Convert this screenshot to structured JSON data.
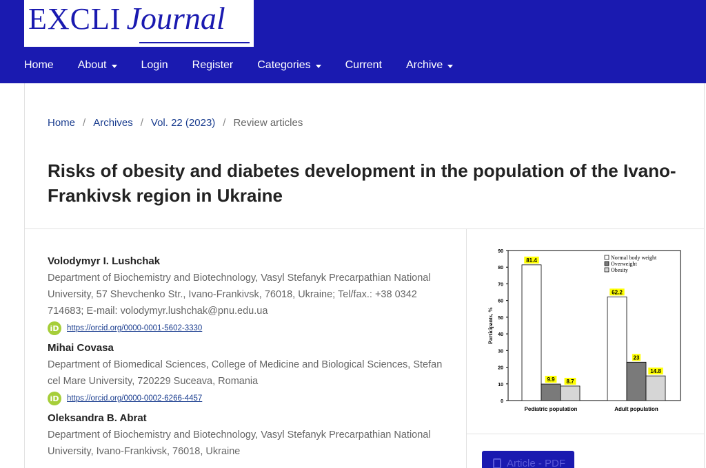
{
  "site": {
    "logo_primary": "EXCLI",
    "logo_secondary": "Journal",
    "colors": {
      "brand": "#1a1ab0",
      "link": "#1a3d8f",
      "orcid": "#a6ce39"
    }
  },
  "nav": [
    {
      "label": "Home",
      "has_menu": false
    },
    {
      "label": "About",
      "has_menu": true
    },
    {
      "label": "Login",
      "has_menu": false
    },
    {
      "label": "Register",
      "has_menu": false
    },
    {
      "label": "Categories",
      "has_menu": true
    },
    {
      "label": "Current",
      "has_menu": false
    },
    {
      "label": "Archive",
      "has_menu": true
    }
  ],
  "breadcrumb": {
    "home": "Home",
    "archives": "Archives",
    "issue": "Vol. 22 (2023)",
    "section": "Review articles",
    "separator": "/"
  },
  "article": {
    "title": "Risks of obesity and diabetes development in the population of the Ivano-Frankivsk region in Ukraine"
  },
  "authors": [
    {
      "name": "Volodymyr I. Lushchak",
      "affiliation": "Department of Biochemistry and Biotechnology, Vasyl Stefanyk Precarpathian National University, 57 Shevchenko Str., Ivano-Frankivsk, 76018, Ukraine; Tel/fax.: +38 0342 714683; E-mail: volodymyr.lushchak@pnu.edu.ua",
      "orcid": "https://orcid.org/0000-0001-5602-3330"
    },
    {
      "name": "Mihai Covasa",
      "affiliation": "Department of Biomedical Sciences, College of Medicine and Biological Sciences, Stefan cel Mare University, 720229 Suceava, Romania",
      "orcid": "https://orcid.org/0000-0002-6266-4457"
    },
    {
      "name": "Oleksandra B. Abrat",
      "affiliation": "Department of Biochemistry and Biotechnology, Vasyl Stefanyk Precarpathian National University, Ivano-Frankivsk, 76018, Ukraine",
      "orcid": ""
    }
  ],
  "orcid_badge": "iD",
  "pdf_button": {
    "label": "Article - PDF",
    "icon": "document-icon"
  },
  "chart_data": {
    "type": "bar",
    "categories": [
      "Pediatric population",
      "Adult population"
    ],
    "series": [
      {
        "name": "Normal body weight",
        "values": [
          81.4,
          62.2
        ],
        "color": "#ffffff"
      },
      {
        "name": "Overweight",
        "values": [
          9.9,
          23
        ],
        "color": "#7a7a7a"
      },
      {
        "name": "Obesity",
        "values": [
          8.7,
          14.8
        ],
        "color": "#d6d6d6"
      }
    ],
    "data_labels": [
      "81.4",
      "62.2",
      "9.9",
      "23",
      "8.7",
      "14.8"
    ],
    "ylabel": "Participants, %",
    "yticks": [
      0,
      10,
      20,
      30,
      40,
      50,
      60,
      70,
      80,
      90
    ],
    "ylim": [
      0,
      90
    ],
    "legend_position": "top-right",
    "label_highlight": "#ffff00",
    "grid": false
  }
}
